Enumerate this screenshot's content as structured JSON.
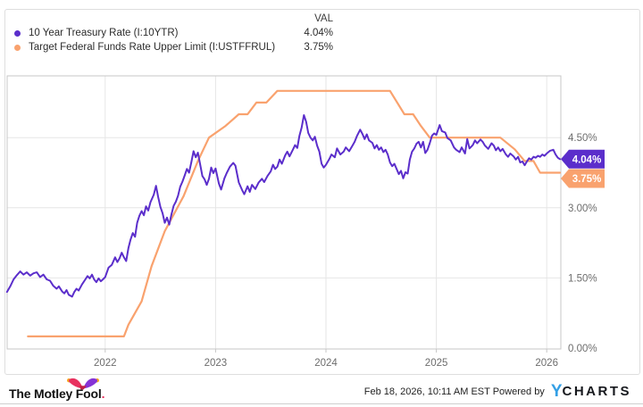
{
  "legend": {
    "val_header": "VAL",
    "items": [
      {
        "label": "10 Year Treasury Rate (I:10YTR)",
        "value": "4.04%",
        "color": "#5b2ecb"
      },
      {
        "label": "Target Federal Funds Rate Upper Limit (I:USTFFRUL)",
        "value": "3.75%",
        "color": "#f9a26e"
      }
    ]
  },
  "chart_data": {
    "type": "line",
    "title": "",
    "x_axis": {
      "ticks": [
        2022,
        2023,
        2024,
        2025,
        2026
      ],
      "tick_labels": [
        "2022",
        "2023",
        "2024",
        "2025",
        "2026"
      ],
      "range": [
        2021.11,
        2026.13
      ]
    },
    "y_axis": {
      "ticks": [
        0,
        1.5,
        3,
        4.5
      ],
      "tick_labels": [
        "0.00%",
        "1.50%",
        "3.00%",
        "4.50%"
      ],
      "range": [
        0,
        5.84
      ],
      "unit": "%",
      "side": "right"
    },
    "grid": true,
    "series": [
      {
        "name": "10 Year Treasury Rate (I:10YTR)",
        "ticker": "I:10YTR",
        "color": "#5b2ecb",
        "current_value": "4.04%",
        "points": [
          [
            2021.11,
            1.2
          ],
          [
            2021.14,
            1.32
          ],
          [
            2021.17,
            1.47
          ],
          [
            2021.2,
            1.56
          ],
          [
            2021.23,
            1.64
          ],
          [
            2021.26,
            1.57
          ],
          [
            2021.29,
            1.62
          ],
          [
            2021.32,
            1.55
          ],
          [
            2021.35,
            1.6
          ],
          [
            2021.38,
            1.62
          ],
          [
            2021.41,
            1.52
          ],
          [
            2021.44,
            1.57
          ],
          [
            2021.47,
            1.47
          ],
          [
            2021.5,
            1.44
          ],
          [
            2021.53,
            1.33
          ],
          [
            2021.56,
            1.27
          ],
          [
            2021.58,
            1.32
          ],
          [
            2021.61,
            1.21
          ],
          [
            2021.63,
            1.17
          ],
          [
            2021.65,
            1.24
          ],
          [
            2021.67,
            1.14
          ],
          [
            2021.7,
            1.1
          ],
          [
            2021.72,
            1.2
          ],
          [
            2021.74,
            1.27
          ],
          [
            2021.76,
            1.23
          ],
          [
            2021.79,
            1.36
          ],
          [
            2021.82,
            1.47
          ],
          [
            2021.84,
            1.54
          ],
          [
            2021.86,
            1.49
          ],
          [
            2021.88,
            1.57
          ],
          [
            2021.9,
            1.47
          ],
          [
            2021.92,
            1.41
          ],
          [
            2021.94,
            1.49
          ],
          [
            2021.96,
            1.43
          ],
          [
            2021.98,
            1.47
          ],
          [
            2022.0,
            1.52
          ],
          [
            2022.03,
            1.72
          ],
          [
            2022.06,
            1.78
          ],
          [
            2022.09,
            1.94
          ],
          [
            2022.11,
            1.84
          ],
          [
            2022.13,
            1.92
          ],
          [
            2022.15,
            2.04
          ],
          [
            2022.17,
            1.94
          ],
          [
            2022.19,
            1.86
          ],
          [
            2022.21,
            2.14
          ],
          [
            2022.23,
            2.32
          ],
          [
            2022.25,
            2.46
          ],
          [
            2022.27,
            2.38
          ],
          [
            2022.29,
            2.68
          ],
          [
            2022.31,
            2.83
          ],
          [
            2022.33,
            2.93
          ],
          [
            2022.35,
            2.84
          ],
          [
            2022.37,
            3.03
          ],
          [
            2022.39,
            2.94
          ],
          [
            2022.41,
            3.12
          ],
          [
            2022.44,
            3.28
          ],
          [
            2022.46,
            3.47
          ],
          [
            2022.48,
            3.23
          ],
          [
            2022.5,
            3.02
          ],
          [
            2022.52,
            2.88
          ],
          [
            2022.54,
            2.68
          ],
          [
            2022.56,
            2.79
          ],
          [
            2022.58,
            2.64
          ],
          [
            2022.6,
            2.86
          ],
          [
            2022.62,
            3.04
          ],
          [
            2022.64,
            3.13
          ],
          [
            2022.66,
            3.26
          ],
          [
            2022.68,
            3.45
          ],
          [
            2022.7,
            3.56
          ],
          [
            2022.72,
            3.69
          ],
          [
            2022.74,
            3.83
          ],
          [
            2022.76,
            3.75
          ],
          [
            2022.78,
            3.97
          ],
          [
            2022.8,
            4.21
          ],
          [
            2022.82,
            4.08
          ],
          [
            2022.84,
            4.18
          ],
          [
            2022.86,
            3.93
          ],
          [
            2022.88,
            3.68
          ],
          [
            2022.9,
            3.61
          ],
          [
            2022.92,
            3.49
          ],
          [
            2022.94,
            3.62
          ],
          [
            2022.96,
            3.86
          ],
          [
            2022.98,
            3.74
          ],
          [
            2023.0,
            3.84
          ],
          [
            2023.03,
            3.52
          ],
          [
            2023.05,
            3.39
          ],
          [
            2023.08,
            3.63
          ],
          [
            2023.1,
            3.74
          ],
          [
            2023.13,
            3.88
          ],
          [
            2023.16,
            3.96
          ],
          [
            2023.18,
            3.9
          ],
          [
            2023.21,
            3.54
          ],
          [
            2023.24,
            3.38
          ],
          [
            2023.26,
            3.29
          ],
          [
            2023.29,
            3.46
          ],
          [
            2023.31,
            3.34
          ],
          [
            2023.33,
            3.49
          ],
          [
            2023.36,
            3.4
          ],
          [
            2023.39,
            3.54
          ],
          [
            2023.42,
            3.62
          ],
          [
            2023.44,
            3.55
          ],
          [
            2023.47,
            3.68
          ],
          [
            2023.5,
            3.78
          ],
          [
            2023.52,
            3.92
          ],
          [
            2023.54,
            3.83
          ],
          [
            2023.56,
            3.88
          ],
          [
            2023.58,
            4.03
          ],
          [
            2023.6,
            3.94
          ],
          [
            2023.63,
            4.12
          ],
          [
            2023.65,
            4.2
          ],
          [
            2023.67,
            4.1
          ],
          [
            2023.7,
            4.24
          ],
          [
            2023.72,
            4.34
          ],
          [
            2023.74,
            4.28
          ],
          [
            2023.76,
            4.54
          ],
          [
            2023.78,
            4.72
          ],
          [
            2023.8,
            4.98
          ],
          [
            2023.82,
            4.84
          ],
          [
            2023.84,
            4.6
          ],
          [
            2023.86,
            4.5
          ],
          [
            2023.88,
            4.44
          ],
          [
            2023.9,
            4.52
          ],
          [
            2023.92,
            4.33
          ],
          [
            2023.94,
            4.2
          ],
          [
            2023.96,
            3.94
          ],
          [
            2023.98,
            3.86
          ],
          [
            2024.0,
            3.92
          ],
          [
            2024.03,
            4.04
          ],
          [
            2024.05,
            4.14
          ],
          [
            2024.08,
            4.08
          ],
          [
            2024.1,
            4.27
          ],
          [
            2024.13,
            4.14
          ],
          [
            2024.16,
            4.2
          ],
          [
            2024.18,
            4.29
          ],
          [
            2024.21,
            4.21
          ],
          [
            2024.24,
            4.33
          ],
          [
            2024.26,
            4.41
          ],
          [
            2024.28,
            4.53
          ],
          [
            2024.31,
            4.67
          ],
          [
            2024.33,
            4.58
          ],
          [
            2024.35,
            4.47
          ],
          [
            2024.37,
            4.57
          ],
          [
            2024.39,
            4.44
          ],
          [
            2024.42,
            4.39
          ],
          [
            2024.44,
            4.27
          ],
          [
            2024.46,
            4.34
          ],
          [
            2024.48,
            4.24
          ],
          [
            2024.5,
            4.29
          ],
          [
            2024.52,
            4.19
          ],
          [
            2024.54,
            4.24
          ],
          [
            2024.56,
            4.14
          ],
          [
            2024.58,
            3.97
          ],
          [
            2024.6,
            3.89
          ],
          [
            2024.62,
            3.94
          ],
          [
            2024.64,
            3.83
          ],
          [
            2024.66,
            3.72
          ],
          [
            2024.68,
            3.79
          ],
          [
            2024.7,
            3.63
          ],
          [
            2024.72,
            3.76
          ],
          [
            2024.74,
            3.73
          ],
          [
            2024.76,
            4.03
          ],
          [
            2024.78,
            4.2
          ],
          [
            2024.8,
            4.27
          ],
          [
            2024.82,
            4.37
          ],
          [
            2024.84,
            4.41
          ],
          [
            2024.86,
            4.29
          ],
          [
            2024.88,
            4.41
          ],
          [
            2024.9,
            4.17
          ],
          [
            2024.92,
            4.24
          ],
          [
            2024.94,
            4.38
          ],
          [
            2024.96,
            4.54
          ],
          [
            2024.98,
            4.59
          ],
          [
            2025.0,
            4.56
          ],
          [
            2025.03,
            4.77
          ],
          [
            2025.05,
            4.64
          ],
          [
            2025.08,
            4.61
          ],
          [
            2025.1,
            4.49
          ],
          [
            2025.13,
            4.44
          ],
          [
            2025.16,
            4.29
          ],
          [
            2025.18,
            4.24
          ],
          [
            2025.21,
            4.19
          ],
          [
            2025.23,
            4.29
          ],
          [
            2025.26,
            4.16
          ],
          [
            2025.28,
            4.47
          ],
          [
            2025.3,
            4.27
          ],
          [
            2025.33,
            4.34
          ],
          [
            2025.35,
            4.44
          ],
          [
            2025.37,
            4.38
          ],
          [
            2025.4,
            4.46
          ],
          [
            2025.42,
            4.41
          ],
          [
            2025.44,
            4.33
          ],
          [
            2025.47,
            4.26
          ],
          [
            2025.5,
            4.38
          ],
          [
            2025.52,
            4.33
          ],
          [
            2025.54,
            4.23
          ],
          [
            2025.56,
            4.29
          ],
          [
            2025.58,
            4.21
          ],
          [
            2025.6,
            4.26
          ],
          [
            2025.63,
            4.14
          ],
          [
            2025.65,
            4.09
          ],
          [
            2025.67,
            4.16
          ],
          [
            2025.7,
            4.1
          ],
          [
            2025.72,
            4.03
          ],
          [
            2025.74,
            4.09
          ],
          [
            2025.76,
            3.97
          ],
          [
            2025.78,
            3.99
          ],
          [
            2025.8,
            3.91
          ],
          [
            2025.82,
            3.99
          ],
          [
            2025.84,
            4.06
          ],
          [
            2025.86,
            4.03
          ],
          [
            2025.88,
            4.09
          ],
          [
            2025.9,
            4.07
          ],
          [
            2025.92,
            4.11
          ],
          [
            2025.94,
            4.09
          ],
          [
            2025.96,
            4.14
          ],
          [
            2025.98,
            4.11
          ],
          [
            2026.0,
            4.16
          ],
          [
            2026.03,
            4.22
          ],
          [
            2026.06,
            4.24
          ],
          [
            2026.08,
            4.14
          ],
          [
            2026.1,
            4.07
          ],
          [
            2026.12,
            4.04
          ]
        ]
      },
      {
        "name": "Target Federal Funds Rate Upper Limit (I:USTFFRUL)",
        "ticker": "I:USTFFRUL",
        "color": "#f9a26e",
        "current_value": "3.75%",
        "points": [
          [
            2021.3,
            0.25
          ],
          [
            2022.17,
            0.25
          ],
          [
            2022.21,
            0.5
          ],
          [
            2022.33,
            1.0
          ],
          [
            2022.42,
            1.75
          ],
          [
            2022.54,
            2.5
          ],
          [
            2022.71,
            3.25
          ],
          [
            2022.84,
            4.0
          ],
          [
            2022.94,
            4.5
          ],
          [
            2023.09,
            4.75
          ],
          [
            2023.21,
            5.0
          ],
          [
            2023.29,
            5.0
          ],
          [
            2023.37,
            5.25
          ],
          [
            2023.46,
            5.25
          ],
          [
            2023.56,
            5.5
          ],
          [
            2024.58,
            5.5
          ],
          [
            2024.71,
            5.0
          ],
          [
            2024.79,
            5.0
          ],
          [
            2024.86,
            4.75
          ],
          [
            2024.94,
            4.5
          ],
          [
            2025.58,
            4.5
          ],
          [
            2025.71,
            4.25
          ],
          [
            2025.8,
            4.0
          ],
          [
            2025.88,
            4.0
          ],
          [
            2025.94,
            3.75
          ],
          [
            2026.12,
            3.75
          ]
        ]
      }
    ],
    "end_labels": [
      "4.04%",
      "3.75%"
    ],
    "legend_position": "top-left"
  },
  "footer": {
    "brand": "The Motley Fool",
    "brand_period": ".",
    "timestamp": "Feb 18, 2026, 10:11 AM EST",
    "powered_by": "Powered by",
    "ycharts_y": "Y",
    "ycharts_rest": "CHARTS"
  },
  "colors": {
    "treasury_line": "#5b2ecb",
    "fed_funds_line": "#f9a26e",
    "grid": "#e6e6e6",
    "plot_border": "#c7c7c7",
    "axis_text": "#6d6d6d",
    "badge_text": "#ffffff",
    "ycharts_blue": "#339fe5",
    "fool_pink": "#e8315f",
    "fool_purple": "#8633d6",
    "fool_gold": "#f6a722"
  }
}
